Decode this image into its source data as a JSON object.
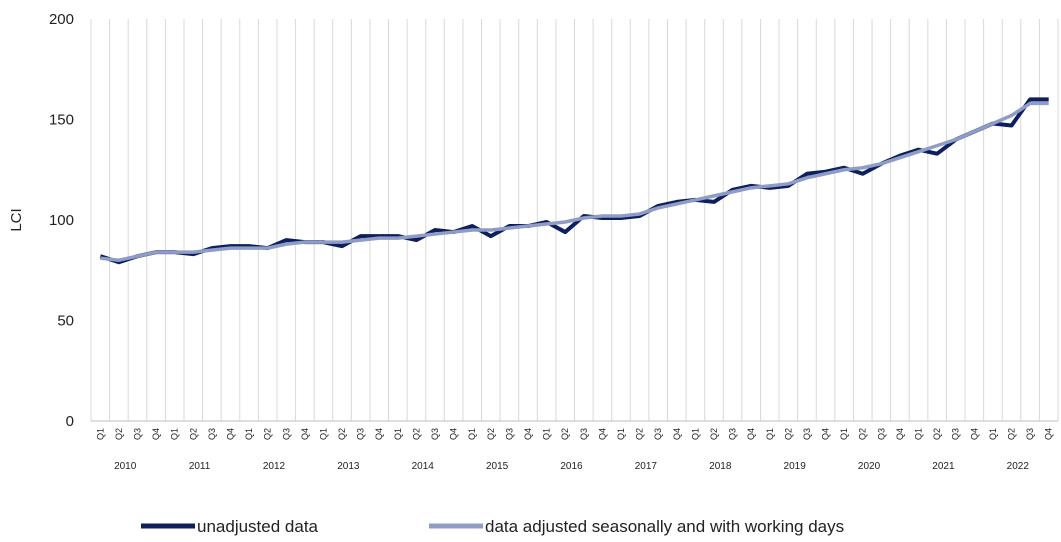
{
  "chart_data": {
    "type": "line",
    "title": "",
    "xlabel": "",
    "ylabel": "LCI",
    "ylim": [
      0,
      200
    ],
    "yticks": [
      0,
      50,
      100,
      150,
      200
    ],
    "grid": "vertical",
    "legend_position": "bottom",
    "years": [
      "2010",
      "2011",
      "2012",
      "2013",
      "2014",
      "2015",
      "2016",
      "2017",
      "2018",
      "2019",
      "2020",
      "2021",
      "2022"
    ],
    "quarter_labels": [
      "Q1",
      "Q2",
      "Q3",
      "Q4"
    ],
    "series": [
      {
        "name": "unadjusted data",
        "color": "#0d1f5c",
        "values": [
          82,
          79,
          82,
          84,
          84,
          83,
          86,
          87,
          87,
          86,
          90,
          89,
          89,
          87,
          92,
          92,
          92,
          90,
          95,
          94,
          97,
          92,
          97,
          97,
          99,
          94,
          102,
          101,
          101,
          102,
          107,
          109,
          110,
          109,
          115,
          117,
          116,
          117,
          123,
          124,
          126,
          123,
          128,
          132,
          135,
          133,
          140,
          144,
          148,
          147,
          160,
          160
        ]
      },
      {
        "name": "data adjusted seasonally and with working days",
        "color": "#8f9dc6",
        "values": [
          81,
          80,
          82,
          84,
          84,
          84,
          85,
          86,
          86,
          86,
          88,
          89,
          89,
          89,
          90,
          91,
          91,
          92,
          93,
          94,
          95,
          95,
          96,
          97,
          98,
          99,
          101,
          102,
          102,
          103,
          106,
          108,
          110,
          112,
          114,
          116,
          117,
          118,
          121,
          123,
          125,
          126,
          128,
          131,
          134,
          137,
          140,
          144,
          148,
          152,
          158,
          158
        ]
      }
    ]
  }
}
